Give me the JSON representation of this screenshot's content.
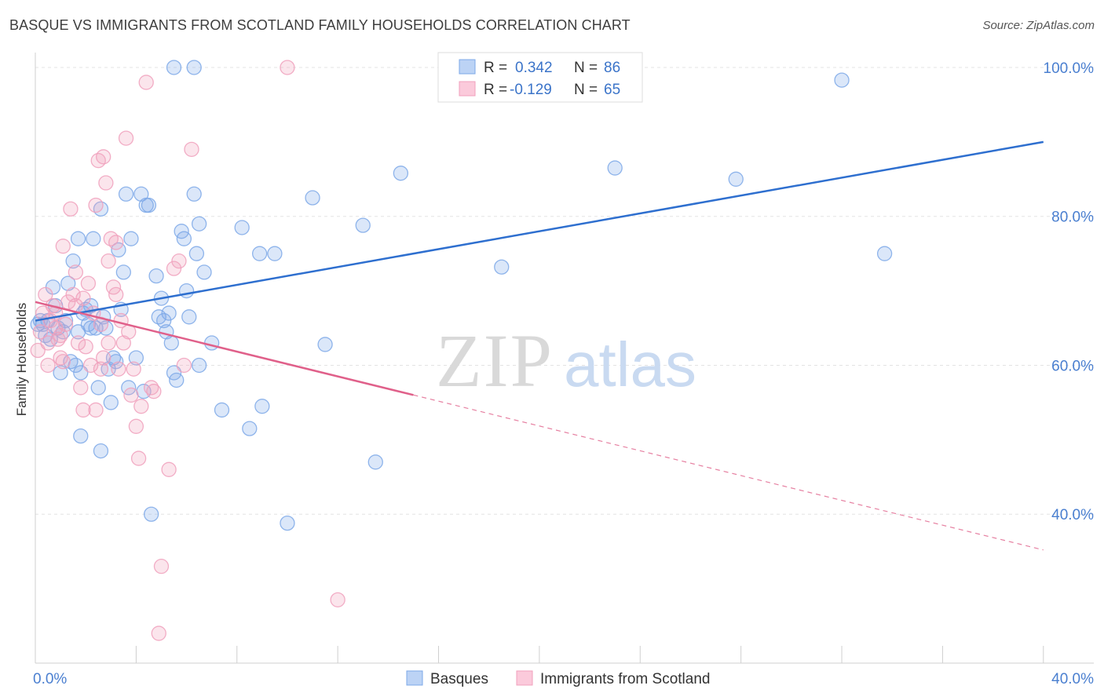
{
  "title": "BASQUE VS IMMIGRANTS FROM SCOTLAND FAMILY HOUSEHOLDS CORRELATION CHART",
  "source": "Source: ZipAtlas.com",
  "watermark": {
    "zip": "ZIP",
    "atlas": "atlas"
  },
  "legend": {
    "rows": [
      {
        "r_label": "R =",
        "r_value": "0.342",
        "n_label": "N =",
        "n_value": "86"
      },
      {
        "r_label": "R =",
        "r_value": "-0.129",
        "n_label": "N =",
        "n_value": "65"
      }
    ]
  },
  "chart_data": {
    "type": "scatter",
    "xlabel": "",
    "ylabel": "Family Households",
    "xlim": [
      0,
      42
    ],
    "ylim": [
      20,
      102
    ],
    "x_ticks": [
      0,
      40
    ],
    "x_tick_labels": [
      "0.0%",
      "40.0%"
    ],
    "y_ticks": [
      40,
      60,
      80,
      100
    ],
    "y_tick_labels": [
      "40.0%",
      "60.0%",
      "80.0%",
      "100.0%"
    ],
    "grid": true,
    "legend_placement": "top-center",
    "series": [
      {
        "name": "Basques",
        "color": "#7da8e8",
        "line_color": "#2e6fcf",
        "trend": {
          "x": [
            0,
            40
          ],
          "y": [
            66.0,
            90.0
          ],
          "solid_until": 40
        },
        "points": [
          [
            0.2,
            66
          ],
          [
            0.3,
            65.5
          ],
          [
            0.4,
            64
          ],
          [
            0.5,
            66
          ],
          [
            0.6,
            63.5
          ],
          [
            0.7,
            70.5
          ],
          [
            0.8,
            68
          ],
          [
            0.9,
            65
          ],
          [
            1.0,
            59
          ],
          [
            1.1,
            64.5
          ],
          [
            1.2,
            66
          ],
          [
            1.3,
            71
          ],
          [
            1.4,
            60.5
          ],
          [
            1.5,
            74
          ],
          [
            1.6,
            60
          ],
          [
            1.7,
            77
          ],
          [
            1.8,
            59
          ],
          [
            1.8,
            50.5
          ],
          [
            1.9,
            67
          ],
          [
            2.0,
            67.5
          ],
          [
            2.1,
            65.5
          ],
          [
            2.2,
            68
          ],
          [
            2.3,
            77
          ],
          [
            2.4,
            65
          ],
          [
            2.5,
            57
          ],
          [
            2.6,
            81
          ],
          [
            2.6,
            48.5
          ],
          [
            2.7,
            66.5
          ],
          [
            2.8,
            65
          ],
          [
            2.9,
            59.5
          ],
          [
            3.0,
            55
          ],
          [
            3.1,
            61
          ],
          [
            3.3,
            75.5
          ],
          [
            3.4,
            67.5
          ],
          [
            3.5,
            72.5
          ],
          [
            3.6,
            83
          ],
          [
            3.7,
            57
          ],
          [
            3.8,
            77
          ],
          [
            4.0,
            61
          ],
          [
            4.2,
            83
          ],
          [
            4.3,
            56.5
          ],
          [
            4.4,
            81.5
          ],
          [
            4.5,
            81.5
          ],
          [
            4.6,
            40
          ],
          [
            4.8,
            72
          ],
          [
            5.0,
            69
          ],
          [
            5.1,
            66
          ],
          [
            5.2,
            64.5
          ],
          [
            5.3,
            67
          ],
          [
            5.4,
            63
          ],
          [
            5.5,
            59
          ],
          [
            5.6,
            58
          ],
          [
            5.8,
            78
          ],
          [
            5.9,
            77
          ],
          [
            6.0,
            70
          ],
          [
            6.1,
            66.5
          ],
          [
            6.3,
            83
          ],
          [
            6.4,
            75
          ],
          [
            6.5,
            79
          ],
          [
            6.7,
            72.5
          ],
          [
            7.0,
            63
          ],
          [
            7.4,
            54
          ],
          [
            8.2,
            78.5
          ],
          [
            8.5,
            51.5
          ],
          [
            8.9,
            75
          ],
          [
            9.0,
            54.5
          ],
          [
            9.5,
            75
          ],
          [
            10,
            38.8
          ],
          [
            11.0,
            82.5
          ],
          [
            11.5,
            62.8
          ],
          [
            13,
            78.8
          ],
          [
            13.5,
            47
          ],
          [
            14.5,
            85.8
          ],
          [
            18.5,
            73.2
          ],
          [
            23,
            86.5
          ],
          [
            27.8,
            85
          ],
          [
            32,
            98.3
          ],
          [
            33.7,
            75
          ],
          [
            5.5,
            100
          ],
          [
            6.3,
            100
          ],
          [
            0.1,
            65.5
          ],
          [
            2.2,
            65
          ],
          [
            4.9,
            66.5
          ],
          [
            1.7,
            64.5
          ],
          [
            3.2,
            60.5
          ],
          [
            6.5,
            60
          ]
        ]
      },
      {
        "name": "Immigrants from Scotland",
        "color": "#f0a0bc",
        "line_color": "#e0608a",
        "trend": {
          "x": [
            0,
            40
          ],
          "y": [
            68.5,
            35.2
          ],
          "solid_until": 15
        },
        "points": [
          [
            0.1,
            62
          ],
          [
            0.2,
            64.5
          ],
          [
            0.3,
            67
          ],
          [
            0.4,
            69.5
          ],
          [
            0.5,
            60
          ],
          [
            0.6,
            66
          ],
          [
            0.7,
            68
          ],
          [
            0.8,
            65
          ],
          [
            0.9,
            63.5
          ],
          [
            1.0,
            61
          ],
          [
            1.1,
            76
          ],
          [
            1.2,
            65.5
          ],
          [
            1.3,
            68.5
          ],
          [
            1.4,
            81
          ],
          [
            1.5,
            69.5
          ],
          [
            1.6,
            72.5
          ],
          [
            1.7,
            63
          ],
          [
            1.8,
            57
          ],
          [
            1.9,
            54
          ],
          [
            2.0,
            62.5
          ],
          [
            2.1,
            71
          ],
          [
            2.2,
            60
          ],
          [
            2.3,
            67
          ],
          [
            2.4,
            54
          ],
          [
            2.5,
            87.5
          ],
          [
            2.6,
            59.5
          ],
          [
            2.7,
            88
          ],
          [
            2.8,
            84.5
          ],
          [
            2.9,
            63
          ],
          [
            3.0,
            77
          ],
          [
            3.1,
            70.5
          ],
          [
            3.2,
            69.5
          ],
          [
            3.3,
            59.5
          ],
          [
            3.4,
            66
          ],
          [
            3.5,
            63
          ],
          [
            3.6,
            90.5
          ],
          [
            3.8,
            56
          ],
          [
            3.9,
            59.5
          ],
          [
            4.0,
            51.8
          ],
          [
            4.1,
            47.5
          ],
          [
            4.2,
            54.5
          ],
          [
            4.4,
            98
          ],
          [
            4.6,
            57
          ],
          [
            4.7,
            56.5
          ],
          [
            4.9,
            24
          ],
          [
            5.0,
            33
          ],
          [
            5.3,
            46
          ],
          [
            5.5,
            73
          ],
          [
            5.7,
            74
          ],
          [
            5.9,
            60
          ],
          [
            6.2,
            89
          ],
          [
            10,
            100
          ],
          [
            12,
            28.5
          ],
          [
            1.6,
            68
          ],
          [
            2.4,
            81.5
          ],
          [
            3.7,
            64.5
          ],
          [
            1.0,
            64
          ],
          [
            0.8,
            67
          ],
          [
            2.9,
            74
          ],
          [
            3.2,
            76.5
          ],
          [
            1.1,
            60.5
          ],
          [
            2.6,
            65.5
          ],
          [
            0.5,
            63
          ],
          [
            1.9,
            69
          ],
          [
            2.7,
            61
          ]
        ]
      }
    ]
  }
}
